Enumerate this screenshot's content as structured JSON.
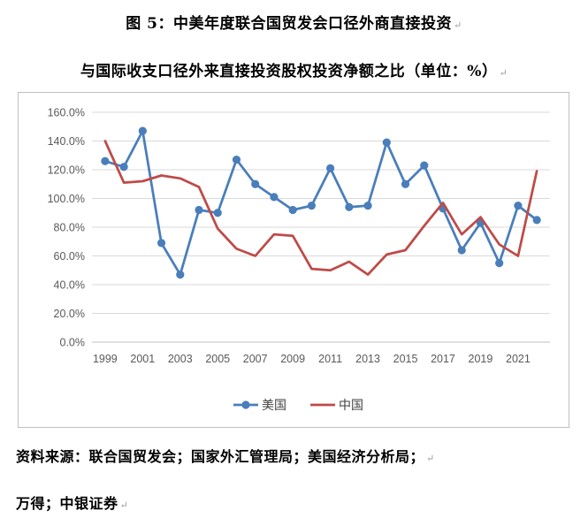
{
  "caption": {
    "line1": "图 5：中美年度联合国贸发会口径外商直接投资",
    "line2": "与国际收支口径外来直接投资股权投资净额之比（单位：%）",
    "return_mark": "↵"
  },
  "source": {
    "line1": "资料来源：联合国贸发会；国家外汇管理局；美国经济分析局；",
    "line2": "万得；中银证券"
  },
  "chart_data": {
    "type": "line",
    "title": "",
    "xlabel": "",
    "ylabel": "",
    "x": [
      1999,
      2000,
      2001,
      2002,
      2003,
      2004,
      2005,
      2006,
      2007,
      2008,
      2009,
      2010,
      2011,
      2012,
      2013,
      2014,
      2015,
      2016,
      2017,
      2018,
      2019,
      2020,
      2021,
      2022
    ],
    "x_tick_labels": [
      "1999",
      "2001",
      "2003",
      "2005",
      "2007",
      "2009",
      "2011",
      "2013",
      "2015",
      "2017",
      "2019",
      "2021"
    ],
    "xlim": [
      1998.3,
      2022.7
    ],
    "ylim": [
      0,
      160
    ],
    "y_ticks": [
      0,
      20,
      40,
      60,
      80,
      100,
      120,
      140,
      160
    ],
    "y_tick_labels": [
      "0.0%",
      "20.0%",
      "40.0%",
      "60.0%",
      "80.0%",
      "100.0%",
      "120.0%",
      "140.0%",
      "160.0%"
    ],
    "grid": true,
    "legend_position": "bottom",
    "series": [
      {
        "name": "美国",
        "color": "#4a7ebb",
        "marker": "circle",
        "values": [
          126,
          122,
          147,
          69,
          47,
          92,
          90,
          127,
          110,
          101,
          92,
          95,
          121,
          94,
          95,
          139,
          110,
          123,
          93,
          64,
          83,
          55,
          95,
          85
        ]
      },
      {
        "name": "中国",
        "color": "#be4b48",
        "marker": "none",
        "values": [
          140,
          111,
          112,
          116,
          114,
          108,
          79,
          65,
          60,
          75,
          74,
          51,
          50,
          56,
          47,
          61,
          64,
          81,
          97,
          75,
          87,
          68,
          60,
          119
        ]
      }
    ]
  }
}
